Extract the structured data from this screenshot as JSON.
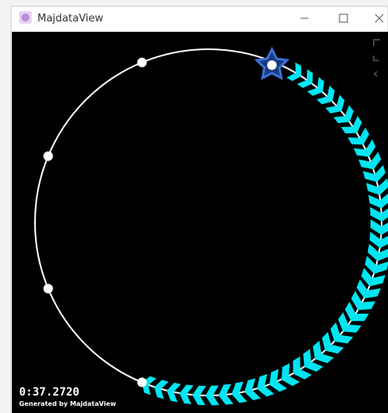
{
  "window": {
    "title": "MajdataView"
  },
  "overlay": {
    "time": "0:37.2720",
    "credit": "Generated by MajdataView"
  }
}
